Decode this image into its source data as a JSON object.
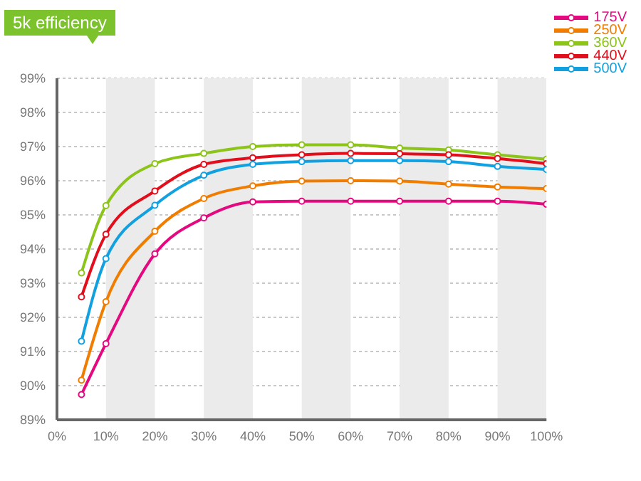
{
  "chart_data": {
    "type": "line",
    "title": "5k efficiency",
    "x": [
      5,
      10,
      20,
      30,
      40,
      50,
      60,
      70,
      80,
      90,
      100
    ],
    "series": [
      {
        "name": "175V",
        "color": "#e5097f",
        "values": [
          89.74,
          91.23,
          93.86,
          94.91,
          95.38,
          95.4,
          95.4,
          95.4,
          95.4,
          95.4,
          95.31
        ]
      },
      {
        "name": "250V",
        "color": "#f07d00",
        "values": [
          90.16,
          92.46,
          94.52,
          95.48,
          95.85,
          95.99,
          96.0,
          95.99,
          95.9,
          95.82,
          95.77
        ]
      },
      {
        "name": "360V",
        "color": "#8cc41a",
        "values": [
          93.3,
          95.27,
          96.5,
          96.8,
          97.0,
          97.05,
          97.05,
          96.96,
          96.9,
          96.76,
          96.63
        ]
      },
      {
        "name": "440V",
        "color": "#e30e1b",
        "values": [
          92.6,
          94.43,
          95.7,
          96.48,
          96.67,
          96.76,
          96.8,
          96.79,
          96.76,
          96.65,
          96.5
        ]
      },
      {
        "name": "500V",
        "color": "#11a0e0",
        "values": [
          91.3,
          93.72,
          95.28,
          96.16,
          96.48,
          96.56,
          96.59,
          96.59,
          96.56,
          96.42,
          96.33
        ]
      }
    ],
    "xlim": [
      0,
      100
    ],
    "xticks": [
      {
        "value": 0,
        "label": "0%"
      },
      {
        "value": 10,
        "label": "10%"
      },
      {
        "value": 20,
        "label": "20%"
      },
      {
        "value": 30,
        "label": "30%"
      },
      {
        "value": 40,
        "label": "40%"
      },
      {
        "value": 50,
        "label": "50%"
      },
      {
        "value": 60,
        "label": "60%"
      },
      {
        "value": 70,
        "label": "70%"
      },
      {
        "value": 80,
        "label": "80%"
      },
      {
        "value": 90,
        "label": "90%"
      },
      {
        "value": 100,
        "label": "100%"
      }
    ],
    "ylim": [
      89,
      99
    ],
    "yticks": [
      {
        "value": 89,
        "label": "89%"
      },
      {
        "value": 90,
        "label": "90%"
      },
      {
        "value": 91,
        "label": "91%"
      },
      {
        "value": 92,
        "label": "92%"
      },
      {
        "value": 93,
        "label": "93%"
      },
      {
        "value": 94,
        "label": "94%"
      },
      {
        "value": 95,
        "label": "95%"
      },
      {
        "value": 96,
        "label": "96%"
      },
      {
        "value": 97,
        "label": "97%"
      },
      {
        "value": 98,
        "label": "98%"
      },
      {
        "value": 99,
        "label": "99%"
      }
    ],
    "bands": [
      {
        "axis": "x",
        "from": 10,
        "to": 20,
        "color": "#ebebeb"
      },
      {
        "axis": "x",
        "from": 30,
        "to": 40,
        "color": "#ebebeb"
      },
      {
        "axis": "x",
        "from": 50,
        "to": 60,
        "color": "#ebebeb"
      },
      {
        "axis": "x",
        "from": 70,
        "to": 80,
        "color": "#ebebeb"
      },
      {
        "axis": "x",
        "from": 90,
        "to": 100,
        "color": "#ebebeb"
      }
    ],
    "grid": "y",
    "legend": "top right",
    "marker": "circle",
    "line_style": "solid"
  }
}
